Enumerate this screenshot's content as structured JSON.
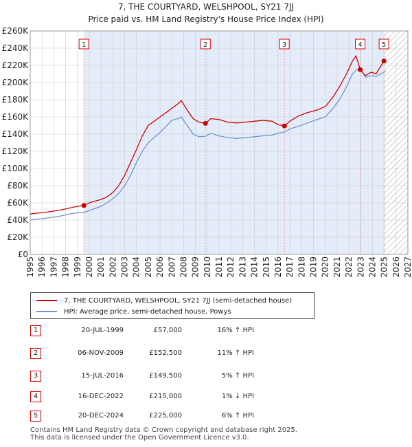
{
  "header": {
    "title": "7, THE COURTYARD, WELSHPOOL, SY21 7JJ",
    "subtitle": "Price paid vs. HM Land Registry's House Price Index (HPI)"
  },
  "legend": {
    "property_label": "7, THE COURTYARD, WELSHPOOL, SY21 7JJ (semi-detached house)",
    "hpi_label": "HPI: Average price, semi-detached house, Powys"
  },
  "sales": [
    {
      "num": "1",
      "date": "20-JUL-1999",
      "price": "£57,000",
      "hpi": "16% ↑ HPI"
    },
    {
      "num": "2",
      "date": "06-NOV-2009",
      "price": "£152,500",
      "hpi": "11% ↑ HPI"
    },
    {
      "num": "3",
      "date": "15-JUL-2016",
      "price": "£149,500",
      "hpi": "5% ↑ HPI"
    },
    {
      "num": "4",
      "date": "16-DEC-2022",
      "price": "£215,000",
      "hpi": "1% ↓ HPI"
    },
    {
      "num": "5",
      "date": "20-DEC-2024",
      "price": "£225,000",
      "hpi": "6% ↑ HPI"
    }
  ],
  "footer": {
    "line1": "Contains HM Land Registry data © Crown copyright and database right 2025.",
    "line2": "This data is licensed under the Open Government Licence v3.0."
  },
  "colors": {
    "property": "#cc0000",
    "hpi": "#6f95c8",
    "shade": "#e5ecf9",
    "grid": "#cccccc",
    "marker_line": "#e0a0a0"
  },
  "chart_data": {
    "type": "line",
    "title": "7, THE COURTYARD, WELSHPOOL, SY21 7JJ",
    "subtitle": "Price paid vs. HM Land Registry's House Price Index (HPI)",
    "xlabel": "",
    "ylabel": "",
    "xlim": [
      1995,
      2027
    ],
    "ylim": [
      0,
      260000
    ],
    "x_ticks": [
      1995,
      1996,
      1997,
      1998,
      1999,
      2000,
      2001,
      2002,
      2003,
      2004,
      2005,
      2006,
      2007,
      2008,
      2009,
      2010,
      2011,
      2012,
      2013,
      2014,
      2015,
      2016,
      2017,
      2018,
      2019,
      2020,
      2021,
      2022,
      2023,
      2024,
      2025,
      2026,
      2027
    ],
    "y_ticks": [
      {
        "value": 0,
        "label": "£0"
      },
      {
        "value": 20000,
        "label": "£20K"
      },
      {
        "value": 40000,
        "label": "£40K"
      },
      {
        "value": 60000,
        "label": "£60K"
      },
      {
        "value": 80000,
        "label": "£80K"
      },
      {
        "value": 100000,
        "label": "£100K"
      },
      {
        "value": 120000,
        "label": "£120K"
      },
      {
        "value": 140000,
        "label": "£140K"
      },
      {
        "value": 160000,
        "label": "£160K"
      },
      {
        "value": 180000,
        "label": "£180K"
      },
      {
        "value": 200000,
        "label": "£200K"
      },
      {
        "value": 220000,
        "label": "£220K"
      },
      {
        "value": 240000,
        "label": "£240K"
      },
      {
        "value": 260000,
        "label": "£260K"
      }
    ],
    "grid": true,
    "legend_position": "bottom-left",
    "hatched_from": 2025.0,
    "series": [
      {
        "name": "7, THE COURTYARD, WELSHPOOL, SY21 7JJ (semi-detached house)",
        "points": [
          [
            1995.0,
            47000
          ],
          [
            1995.5,
            48000
          ],
          [
            1996.0,
            48500
          ],
          [
            1996.5,
            49500
          ],
          [
            1997.0,
            50500
          ],
          [
            1997.5,
            51500
          ],
          [
            1998.0,
            53000
          ],
          [
            1998.5,
            54500
          ],
          [
            1999.0,
            56000
          ],
          [
            1999.55,
            57000
          ],
          [
            2000.0,
            60000
          ],
          [
            2000.5,
            62000
          ],
          [
            2001.0,
            64000
          ],
          [
            2001.5,
            67000
          ],
          [
            2002.0,
            72000
          ],
          [
            2002.5,
            80000
          ],
          [
            2003.0,
            92000
          ],
          [
            2003.5,
            107000
          ],
          [
            2004.0,
            122000
          ],
          [
            2004.5,
            138000
          ],
          [
            2005.0,
            150000
          ],
          [
            2005.5,
            155000
          ],
          [
            2006.0,
            160000
          ],
          [
            2006.5,
            165000
          ],
          [
            2007.0,
            170000
          ],
          [
            2007.5,
            175000
          ],
          [
            2007.8,
            179000
          ],
          [
            2008.3,
            168000
          ],
          [
            2008.8,
            158000
          ],
          [
            2009.3,
            154000
          ],
          [
            2009.85,
            152500
          ],
          [
            2010.3,
            158000
          ],
          [
            2011.0,
            157000
          ],
          [
            2011.7,
            154000
          ],
          [
            2012.5,
            153000
          ],
          [
            2013.3,
            154000
          ],
          [
            2014.0,
            155000
          ],
          [
            2014.7,
            156000
          ],
          [
            2015.5,
            155000
          ],
          [
            2016.0,
            151000
          ],
          [
            2016.54,
            149500
          ],
          [
            2017.0,
            155000
          ],
          [
            2017.7,
            161000
          ],
          [
            2018.5,
            165000
          ],
          [
            2019.3,
            168000
          ],
          [
            2020.0,
            172000
          ],
          [
            2020.6,
            182000
          ],
          [
            2021.2,
            195000
          ],
          [
            2021.8,
            210000
          ],
          [
            2022.3,
            225000
          ],
          [
            2022.6,
            231000
          ],
          [
            2022.96,
            215000
          ],
          [
            2023.4,
            208000
          ],
          [
            2023.9,
            212000
          ],
          [
            2024.3,
            210000
          ],
          [
            2024.97,
            225000
          ],
          [
            2025.15,
            226000
          ]
        ]
      },
      {
        "name": "HPI: Average price, semi-detached house, Powys",
        "points": [
          [
            1995.0,
            40000
          ],
          [
            1995.5,
            41000
          ],
          [
            1996.0,
            41500
          ],
          [
            1996.5,
            42500
          ],
          [
            1997.0,
            43500
          ],
          [
            1997.5,
            44500
          ],
          [
            1998.0,
            46000
          ],
          [
            1998.5,
            47500
          ],
          [
            1999.0,
            48500
          ],
          [
            1999.55,
            49000
          ],
          [
            2000.0,
            51000
          ],
          [
            2000.5,
            53500
          ],
          [
            2001.0,
            56000
          ],
          [
            2001.5,
            60000
          ],
          [
            2002.0,
            65000
          ],
          [
            2002.5,
            71000
          ],
          [
            2003.0,
            80000
          ],
          [
            2003.5,
            92000
          ],
          [
            2004.0,
            107000
          ],
          [
            2004.5,
            120000
          ],
          [
            2005.0,
            130000
          ],
          [
            2005.5,
            136000
          ],
          [
            2006.0,
            142000
          ],
          [
            2006.5,
            149000
          ],
          [
            2007.0,
            156000
          ],
          [
            2007.5,
            158000
          ],
          [
            2007.8,
            160000
          ],
          [
            2008.3,
            150000
          ],
          [
            2008.8,
            140000
          ],
          [
            2009.3,
            137000
          ],
          [
            2009.85,
            137500
          ],
          [
            2010.3,
            141000
          ],
          [
            2011.0,
            138000
          ],
          [
            2011.7,
            136000
          ],
          [
            2012.5,
            135000
          ],
          [
            2013.3,
            136000
          ],
          [
            2014.0,
            137000
          ],
          [
            2014.7,
            138000
          ],
          [
            2015.5,
            139000
          ],
          [
            2016.0,
            141000
          ],
          [
            2016.54,
            142500
          ],
          [
            2017.0,
            146000
          ],
          [
            2017.7,
            149000
          ],
          [
            2018.5,
            153000
          ],
          [
            2019.3,
            157000
          ],
          [
            2020.0,
            160000
          ],
          [
            2020.6,
            169000
          ],
          [
            2021.2,
            180000
          ],
          [
            2021.8,
            195000
          ],
          [
            2022.3,
            210000
          ],
          [
            2022.6,
            214000
          ],
          [
            2022.96,
            217000
          ],
          [
            2023.4,
            206000
          ],
          [
            2023.9,
            208000
          ],
          [
            2024.3,
            207000
          ],
          [
            2024.97,
            212000
          ],
          [
            2025.15,
            213000
          ]
        ]
      }
    ],
    "sale_markers": [
      {
        "label": "1",
        "x": 1999.55,
        "y": 57000
      },
      {
        "label": "2",
        "x": 2009.85,
        "y": 152500
      },
      {
        "label": "3",
        "x": 2016.54,
        "y": 149500
      },
      {
        "label": "4",
        "x": 2022.96,
        "y": 215000
      },
      {
        "label": "5",
        "x": 2024.97,
        "y": 225000
      }
    ]
  }
}
